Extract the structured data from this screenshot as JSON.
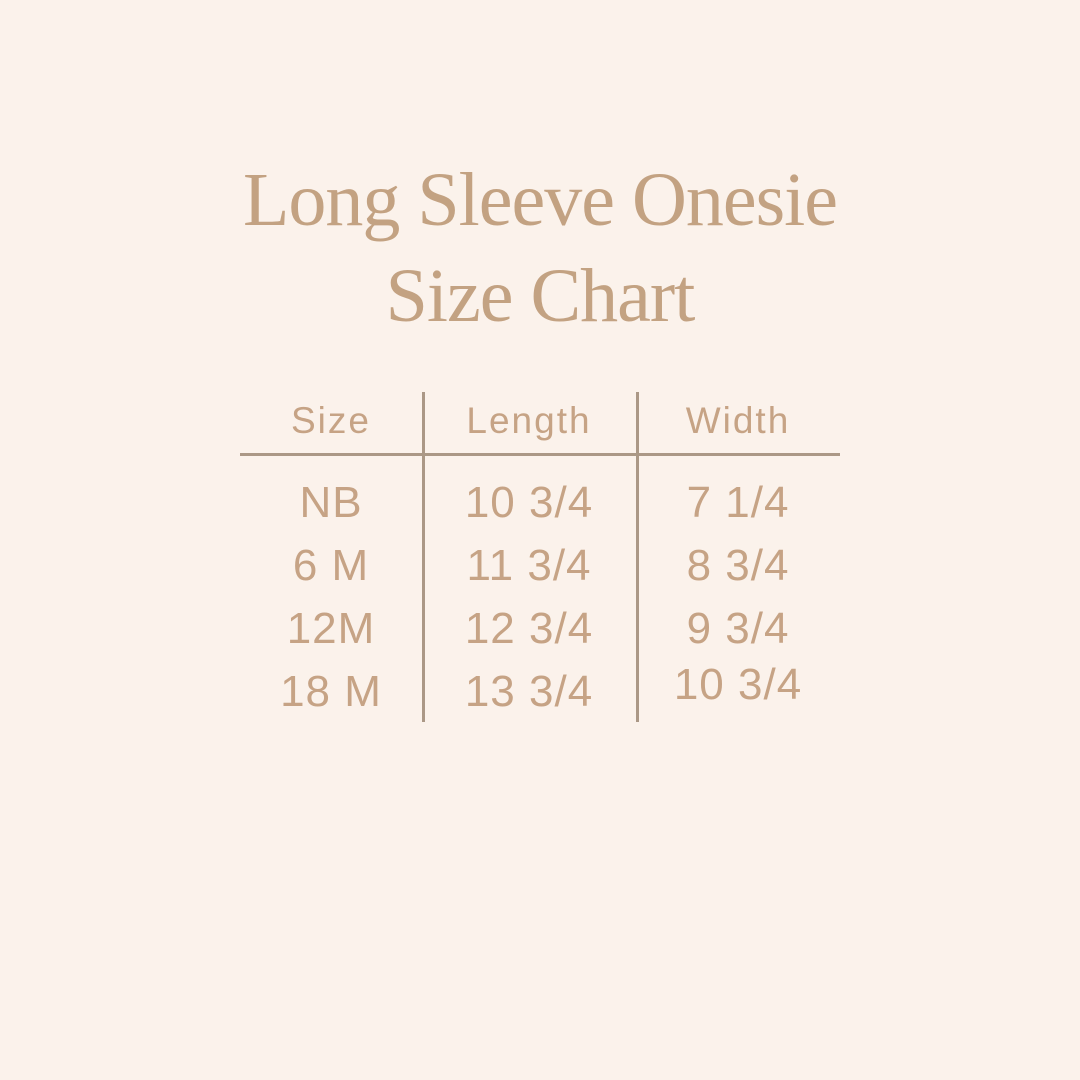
{
  "page": {
    "background_color": "#FBF2EB",
    "title_color": "#C3A282",
    "table_text_color": "#C6A385",
    "divider_color": "#AB9886"
  },
  "title": {
    "line1": "Long Sleeve Onesie",
    "line2": "Size Chart"
  },
  "chart_data": {
    "type": "table",
    "title": "Long Sleeve Onesie Size Chart",
    "columns": [
      "Size",
      "Length",
      "Width"
    ],
    "rows": [
      [
        "NB",
        "10 3/4",
        "7 1/4"
      ],
      [
        "6 M",
        "11 3/4",
        "8 3/4"
      ],
      [
        "12M",
        "12 3/4",
        "9 3/4"
      ],
      [
        "18 M",
        "13 3/4",
        "10 3/4"
      ]
    ],
    "legend": null,
    "grid": "column-dividers-and-header-rule"
  }
}
